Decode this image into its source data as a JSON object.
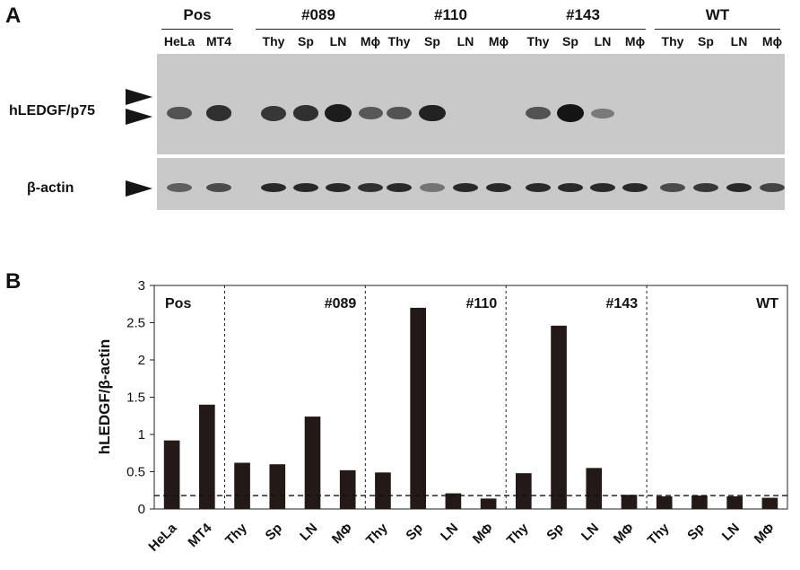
{
  "panel_a": {
    "letter": "A",
    "groups": [
      {
        "name": "Pos",
        "lanes": [
          "HeLa",
          "MT4"
        ]
      },
      {
        "name": "#089",
        "lanes": [
          "Thy",
          "Sp",
          "LN",
          "Mϕ"
        ]
      },
      {
        "name": "#110",
        "lanes": [
          "Thy",
          "Sp",
          "LN",
          "Mϕ"
        ]
      },
      {
        "name": "#143",
        "lanes": [
          "Thy",
          "Sp",
          "LN",
          "Mϕ"
        ]
      },
      {
        "name": "WT",
        "lanes": [
          "Thy",
          "Sp",
          "LN",
          "Mϕ"
        ]
      }
    ],
    "row_labels": {
      "ledgf": "hLEDGF/p75",
      "actin": "β-actin"
    },
    "band_colors": {
      "band": "#151515",
      "blot_background": "#c9c9c9"
    },
    "ledgf_band_intensity": [
      0.55,
      0.8,
      0,
      0.75,
      0.8,
      0.95,
      0.5,
      0.55,
      0.9,
      0,
      0,
      0.55,
      1.0,
      0.25,
      0,
      0,
      0,
      0,
      0
    ],
    "actin_band_intensity": [
      0.45,
      0.6,
      0,
      0.85,
      0.85,
      0.85,
      0.8,
      0.85,
      0.3,
      0.85,
      0.85,
      0.85,
      0.85,
      0.85,
      0.85,
      0.6,
      0.75,
      0.85,
      0.65
    ]
  },
  "chart_data": {
    "type": "bar",
    "letter": "B",
    "ylabel": "hLEDGF/β-actin",
    "ylim": [
      0,
      3
    ],
    "yticks": [
      "0",
      "0.5",
      "1",
      "1.5",
      "2",
      "2.5",
      "3"
    ],
    "categories": [
      "HeLa",
      "MT4",
      "Thy",
      "Sp",
      "LN",
      "MΦ",
      "Thy",
      "Sp",
      "LN",
      "MΦ",
      "Thy",
      "Sp",
      "LN",
      "MΦ",
      "Thy",
      "Sp",
      "LN",
      "MΦ"
    ],
    "values": [
      0.92,
      1.4,
      0.62,
      0.6,
      1.24,
      0.52,
      0.49,
      2.7,
      0.21,
      0.14,
      0.48,
      2.46,
      0.55,
      0.19,
      0.17,
      0.18,
      0.17,
      0.15
    ],
    "groups": [
      {
        "name": "Pos",
        "count": 2
      },
      {
        "name": "#089",
        "count": 4
      },
      {
        "name": "#110",
        "count": 4
      },
      {
        "name": "#143",
        "count": 4
      },
      {
        "name": "WT",
        "count": 4
      }
    ],
    "threshold_line": 0.18,
    "bar_color": "#231a17",
    "grid": false
  }
}
